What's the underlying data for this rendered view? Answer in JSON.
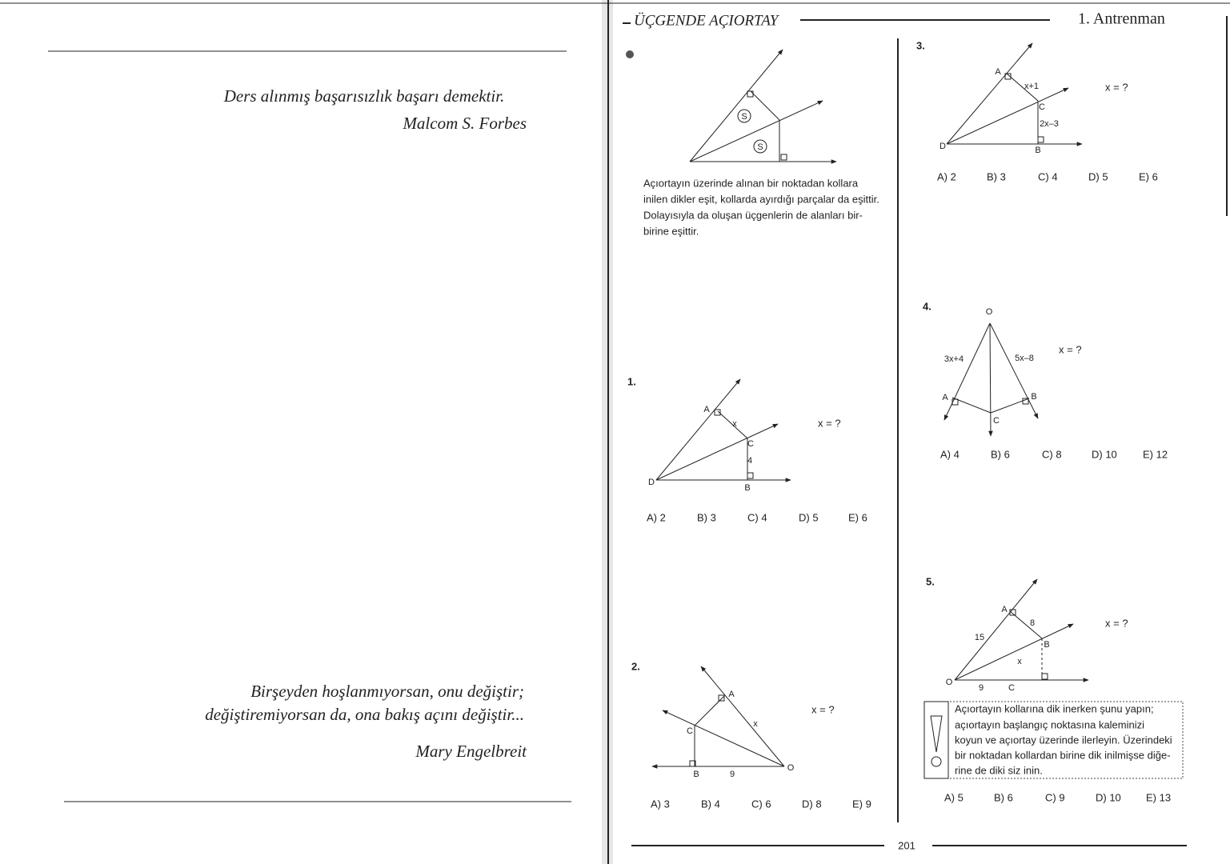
{
  "left_page": {
    "quote1": {
      "text": "Ders alınmış başarısızlık başarı demektir.",
      "author": "Malcom S. Forbes"
    },
    "quote2": {
      "lines": [
        "Birşeyden hoşlanmıyorsan, onu değiştir;",
        "değiştiremiyorsan da, ona bakış açını değiştir..."
      ],
      "author": "Mary Engelbreit"
    }
  },
  "header": {
    "title": "ÜÇGENDE AÇIORTAY",
    "section": "1. Antrenman"
  },
  "intro": {
    "figure_labels": [
      "S",
      "S"
    ],
    "lines": [
      "Açıortayın üzerinde alınan bir noktadan kollara",
      "inilen dikler eşit, kollarda ayırdığı parçalar da eşittir.",
      "Dolayısıyla da oluşan üçgenlerin de alanları bir-",
      "birine eşittir."
    ]
  },
  "problems": [
    {
      "number": "1.",
      "question": "x = ?",
      "figure_labels": [
        "A",
        "x",
        "C",
        "4",
        "B",
        "D"
      ],
      "choices": [
        "A) 2",
        "B) 3",
        "C) 4",
        "D) 5",
        "E) 6"
      ]
    },
    {
      "number": "2.",
      "question": "x = ?",
      "figure_labels": [
        "A",
        "C",
        "x",
        "B",
        "9",
        "O"
      ],
      "choices": [
        "A) 3",
        "B) 4",
        "C) 6",
        "D) 8",
        "E) 9"
      ]
    },
    {
      "number": "3.",
      "question": "x = ?",
      "figure_labels": [
        "A",
        "x+1",
        "C",
        "2x–3",
        "B",
        "D"
      ],
      "choices": [
        "A) 2",
        "B) 3",
        "C) 4",
        "D) 5",
        "E) 6"
      ]
    },
    {
      "number": "4.",
      "question": "x = ?",
      "figure_labels": [
        "O",
        "3x+4",
        "5x–8",
        "A",
        "B",
        "C"
      ],
      "choices": [
        "A) 4",
        "B) 6",
        "C) 8",
        "D) 10",
        "E) 12"
      ]
    },
    {
      "number": "5.",
      "question": "x = ?",
      "figure_labels": [
        "A",
        "8",
        "15",
        "B",
        "x",
        "O",
        "9",
        "C"
      ],
      "choices": [
        "A) 5",
        "B) 6",
        "C) 9",
        "D) 10",
        "E) 13"
      ]
    }
  ],
  "tip": {
    "lines": [
      "Açıortayın kollarına dik inerken şunu yapın;",
      "açıortayın başlangıç noktasına kaleminizi",
      "koyun ve açıortay üzerinde ilerleyin. Üzerindeki",
      "bir noktadan kollardan birine dik inilmişse diğe-",
      "rine de diki siz inin."
    ]
  },
  "page_number": "201"
}
